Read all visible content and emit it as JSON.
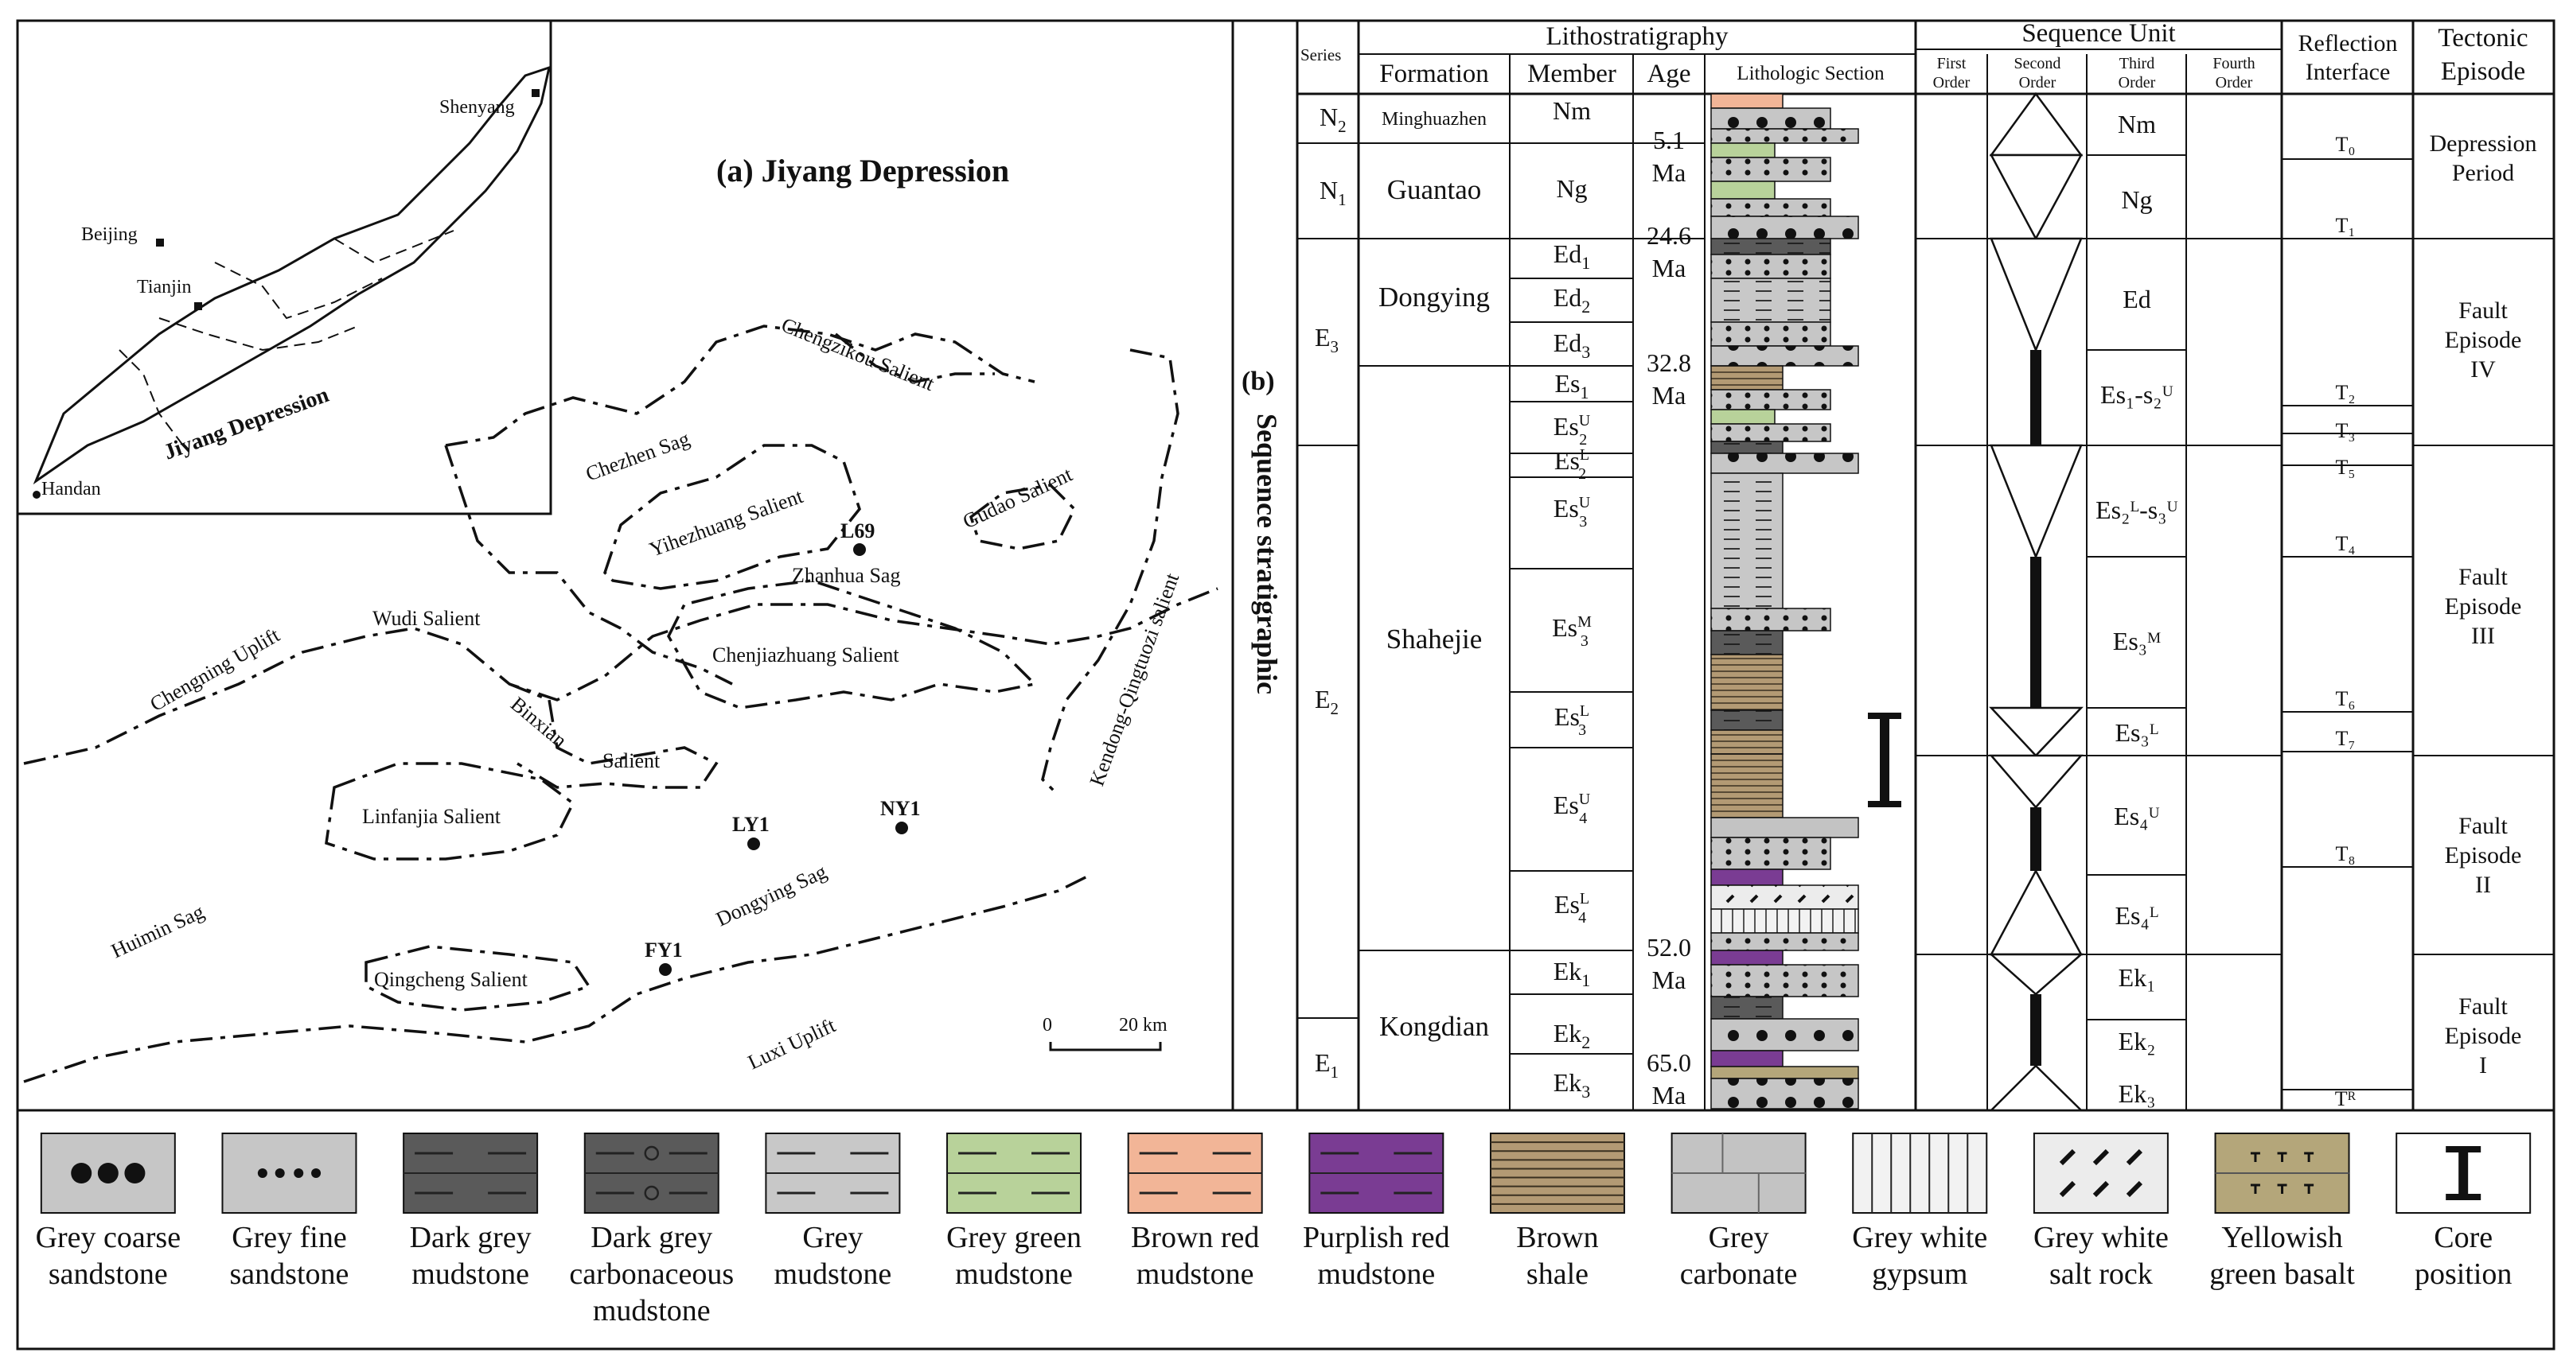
{
  "map": {
    "title": "(a) Jiyang Depression",
    "inset": {
      "region_label": "Jiyang Depression",
      "cities": [
        {
          "name": "Shenyang",
          "marker": "square"
        },
        {
          "name": "Beijing",
          "marker": "square"
        },
        {
          "name": "Tianjin",
          "marker": "square"
        },
        {
          "name": "Handan",
          "marker": "dot"
        }
      ]
    },
    "labels": [
      "Chengzikou Salient",
      "Chezhen Sag",
      "Yihezhuang Salient",
      "Gudao Salient",
      "Zhanhua Sag",
      "Chenjiazhuang Salient",
      "Kendong-Qingtuozi salient",
      "Chengning Uplift",
      "Wudi Salient",
      "Binxian",
      "Salient",
      "Linfanjia Salient",
      "Dongying Sag",
      "Huimin Sag",
      "Qingcheng Salient",
      "Luxi Uplift"
    ],
    "wells": [
      "L69",
      "LY1",
      "NY1",
      "FY1"
    ],
    "scale": {
      "start": "0",
      "end": "20 km"
    }
  },
  "column": {
    "panel_label": "(b)",
    "vertical_title": "Sequence stratigraphic",
    "headers": {
      "series": "Series",
      "lithostratigraphy": "Lithostratigraphy",
      "formation": "Formation",
      "member": "Member",
      "age": "Age",
      "lithologic_section": "Lithologic Section",
      "sequence_unit": "Sequence Unit",
      "first_order": [
        "First",
        "Order"
      ],
      "second_order": [
        "Second",
        "Order"
      ],
      "third_order": [
        "Third",
        "Order"
      ],
      "fourth_order": [
        "Fourth",
        "Order"
      ],
      "reflection_interface": [
        "Reflection",
        "Interface"
      ],
      "tectonic_episode": [
        "Tectonic",
        "Episode"
      ]
    },
    "series": [
      {
        "base": "N",
        "sub": "2"
      },
      {
        "base": "N",
        "sub": "1"
      },
      {
        "base": "E",
        "sub": "3"
      },
      {
        "base": "E",
        "sub": "2"
      },
      {
        "base": "E",
        "sub": "1"
      }
    ],
    "formations": [
      "Minghuazhen",
      "Guantao",
      "Dongying",
      "Shahejie",
      "Kongdian"
    ],
    "members": [
      {
        "base": "Nm"
      },
      {
        "base": "Ng"
      },
      {
        "base": "Ed",
        "sub": "1"
      },
      {
        "base": "Ed",
        "sub": "2"
      },
      {
        "base": "Ed",
        "sub": "3"
      },
      {
        "base": "Es",
        "sub": "1"
      },
      {
        "base": "Es",
        "sub": "2",
        "sup": "U"
      },
      {
        "base": "Es",
        "sub": "2",
        "sup": "L"
      },
      {
        "base": "Es",
        "sub": "3",
        "sup": "U"
      },
      {
        "base": "Es",
        "sub": "3",
        "sup": "M"
      },
      {
        "base": "Es",
        "sub": "3",
        "sup": "L"
      },
      {
        "base": "Es",
        "sub": "4",
        "sup": "U"
      },
      {
        "base": "Es",
        "sub": "4",
        "sup": "L"
      },
      {
        "base": "Ek",
        "sub": "1"
      },
      {
        "base": "Ek",
        "sub": "2"
      },
      {
        "base": "Ek",
        "sub": "3"
      }
    ],
    "ages": [
      {
        "value": "5.1",
        "unit": "Ma"
      },
      {
        "value": "24.6",
        "unit": "Ma"
      },
      {
        "value": "32.8",
        "unit": "Ma"
      },
      {
        "value": "52.0",
        "unit": "Ma"
      },
      {
        "value": "65.0",
        "unit": "Ma"
      }
    ],
    "third_order": [
      "Nm",
      "Ng",
      "Ed",
      "Es₁-s₂ᵁ",
      "Es₂ᴸ-s₃ᵁ",
      "Es₃ᴹ",
      "Es₃ᴸ",
      "Es₄ᵁ",
      "Es₄ᴸ",
      "Ek₁",
      "Ek₂",
      "Ek₃"
    ],
    "reflections": [
      "T₀",
      "T₁",
      "T₂",
      "T₃",
      "T₅",
      "T₄",
      "T₆",
      "T₇",
      "T₈",
      "Tᴿ"
    ],
    "tectonic": [
      {
        "lines": [
          "Depression",
          "Period"
        ]
      },
      {
        "lines": [
          "Fault",
          "Episode",
          "IV"
        ]
      },
      {
        "lines": [
          "Fault",
          "Episode",
          "III"
        ]
      },
      {
        "lines": [
          "Fault",
          "Episode",
          "II"
        ]
      },
      {
        "lines": [
          "Fault",
          "Episode",
          "I"
        ]
      }
    ]
  },
  "legend": [
    {
      "label": [
        "Grey coarse",
        "sandstone"
      ],
      "pattern": "coarse",
      "color": "#c6c6c6"
    },
    {
      "label": [
        "Grey fine",
        "sandstone"
      ],
      "pattern": "fine",
      "color": "#c6c6c6"
    },
    {
      "label": [
        "Dark grey",
        "mudstone"
      ],
      "pattern": "dash",
      "color": "#5a5a5a"
    },
    {
      "label": [
        "Dark grey",
        "carbonaceous",
        "mudstone"
      ],
      "pattern": "carb",
      "color": "#5a5a5a"
    },
    {
      "label": [
        "Grey",
        "mudstone"
      ],
      "pattern": "dash",
      "color": "#c8c8c8"
    },
    {
      "label": [
        "Grey green",
        "mudstone"
      ],
      "pattern": "dash",
      "color": "#b8d29a"
    },
    {
      "label": [
        "Brown red",
        "mudstone"
      ],
      "pattern": "dash",
      "color": "#f2b597"
    },
    {
      "label": [
        "Purplish red",
        "mudstone"
      ],
      "pattern": "dash",
      "color": "#7a3c93"
    },
    {
      "label": [
        "Brown",
        "shale"
      ],
      "pattern": "shale",
      "color": "#b39a74"
    },
    {
      "label": [
        "Grey",
        "carbonate"
      ],
      "pattern": "brick",
      "color": "#c3c3c3"
    },
    {
      "label": [
        "Grey white",
        "gypsum"
      ],
      "pattern": "gypsum",
      "color": "#f2f2f2"
    },
    {
      "label": [
        "Grey white",
        "salt rock"
      ],
      "pattern": "salt",
      "color": "#ececec"
    },
    {
      "label": [
        "Yellowish",
        "green basalt"
      ],
      "pattern": "basalt",
      "color": "#b4a67a"
    },
    {
      "label": [
        "Core",
        "position"
      ],
      "pattern": "core",
      "color": "#ffffff"
    }
  ]
}
